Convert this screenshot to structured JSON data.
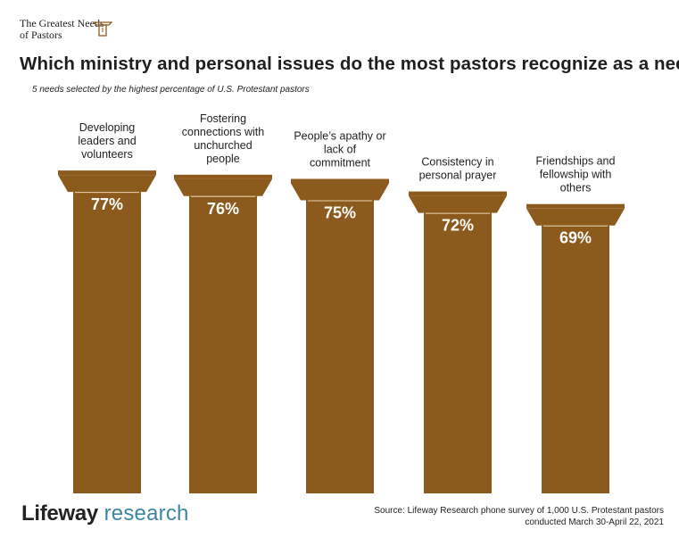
{
  "series_title": "The Greatest Needs of Pastors",
  "chart_data": {
    "type": "bar",
    "title": "Which ministry and personal issues do the most pastors recognize as a need?",
    "subtitle": "5 needs selected by the highest percentage of U.S. Protestant pastors",
    "categories": [
      [
        "Developing",
        "leaders and",
        "volunteers"
      ],
      [
        "Fostering",
        "connections with",
        "unchurched",
        "people"
      ],
      [
        "People’s apathy or",
        "lack of",
        "commitment"
      ],
      [
        "Consistency in",
        "personal prayer"
      ],
      [
        "Friendships and",
        "fellowship with",
        "others"
      ]
    ],
    "values": [
      77,
      76,
      75,
      72,
      69
    ],
    "value_labels": [
      "77%",
      "76%",
      "75%",
      "72%",
      "69%"
    ],
    "unit": "%",
    "bar_color": "#8c5a1c",
    "ylim": [
      0,
      100
    ],
    "xlabel": "",
    "ylabel": "",
    "grid": false
  },
  "footer": {
    "brand_name": "Lifeway",
    "brand_sub": "research",
    "source_line1": "Source: Lifeway Research phone survey of 1,000 U.S. Protestant pastors",
    "source_line2": "conducted March 30-April 22, 2021"
  }
}
